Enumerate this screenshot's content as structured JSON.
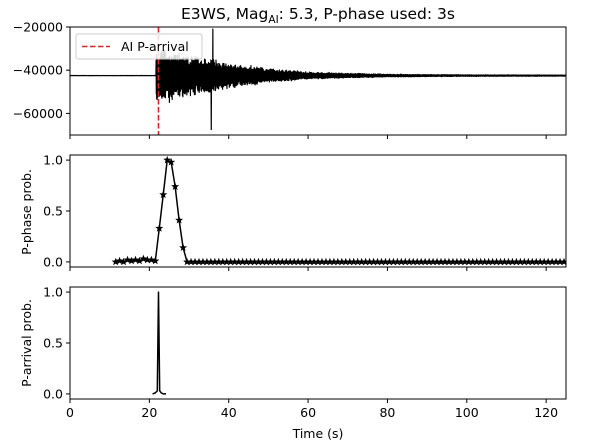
{
  "chart_data": [
    {
      "type": "line",
      "panel": "waveform",
      "title_main": "E3WS, Mag",
      "title_sub": "AI",
      "title_rest": ": 5.3, P-phase used: 3s",
      "xlabel": "",
      "ylabel": "",
      "xlim": [
        0,
        125
      ],
      "ylim": [
        -70000,
        -20000
      ],
      "yticks": [
        -60000,
        -40000,
        -20000
      ],
      "ytick_labels": [
        "−60000",
        "−40000",
        "−20000"
      ],
      "xticks": [
        0,
        20,
        40,
        60,
        80,
        100,
        120
      ],
      "baseline": -42500,
      "arrival_time": 22.3,
      "signal_start": 21.7,
      "envelope": [
        {
          "t": 22,
          "a": 14000
        },
        {
          "t": 25,
          "a": 12500
        },
        {
          "t": 30,
          "a": 10000
        },
        {
          "t": 36,
          "a": 8500
        },
        {
          "t": 40,
          "a": 6500
        },
        {
          "t": 50,
          "a": 3500
        },
        {
          "t": 60,
          "a": 1800
        },
        {
          "t": 80,
          "a": 700
        },
        {
          "t": 100,
          "a": 400
        },
        {
          "t": 125,
          "a": 300
        }
      ],
      "peaks": [
        {
          "t": 36,
          "y": -21000
        },
        {
          "t": 35.6,
          "y": -67500
        }
      ],
      "legend": {
        "label": "AI P-arrival",
        "placement": "upper-left"
      },
      "grid": false
    },
    {
      "type": "line",
      "panel": "p-phase",
      "ylabel": "P-phase prob.",
      "xlim": [
        0,
        125
      ],
      "ylim": [
        -0.05,
        1.05
      ],
      "yticks": [
        0.0,
        0.5,
        1.0
      ],
      "ytick_labels": [
        "0.0",
        "0.5",
        "1.0"
      ],
      "xticks": [
        0,
        20,
        40,
        60,
        80,
        100,
        120
      ],
      "marker": "star",
      "points": [
        [
          11.5,
          0.0
        ],
        [
          12.5,
          0.01
        ],
        [
          13.5,
          0.0
        ],
        [
          14.5,
          0.02
        ],
        [
          15.5,
          0.01
        ],
        [
          16.5,
          0.02
        ],
        [
          17.5,
          0.01
        ],
        [
          18.5,
          0.03
        ],
        [
          19.5,
          0.02
        ],
        [
          20.5,
          0.02
        ],
        [
          21.5,
          0.01
        ],
        [
          22.5,
          0.33
        ],
        [
          23.5,
          0.66
        ],
        [
          24.5,
          1.0
        ],
        [
          25.5,
          0.98
        ],
        [
          26.5,
          0.74
        ],
        [
          27.5,
          0.41
        ],
        [
          28.5,
          0.14
        ],
        [
          29.5,
          0.0
        ],
        [
          30.5,
          0.0
        ],
        [
          31.5,
          0.0
        ],
        [
          32.5,
          0.0
        ],
        [
          33.5,
          0.0
        ],
        [
          34.5,
          0.0
        ],
        [
          35.5,
          0.0
        ],
        [
          36.5,
          0.0
        ],
        [
          37.5,
          0.0
        ],
        [
          38.5,
          0.0
        ],
        [
          39.5,
          0.0
        ],
        [
          40.5,
          0.0
        ],
        [
          41.5,
          0.0
        ],
        [
          42.5,
          0.0
        ],
        [
          43.5,
          0.0
        ],
        [
          44.5,
          0.0
        ],
        [
          45.5,
          0.0
        ],
        [
          46.5,
          0.0
        ],
        [
          47.5,
          0.0
        ],
        [
          48.5,
          0.0
        ],
        [
          49.5,
          0.0
        ],
        [
          50.5,
          0.0
        ],
        [
          51.5,
          0.0
        ],
        [
          52.5,
          0.0
        ],
        [
          53.5,
          0.0
        ],
        [
          54.5,
          0.0
        ],
        [
          55.5,
          0.0
        ],
        [
          56.5,
          0.0
        ],
        [
          57.5,
          0.0
        ],
        [
          58.5,
          0.0
        ],
        [
          59.5,
          0.0
        ],
        [
          60.5,
          0.0
        ],
        [
          61.5,
          0.0
        ],
        [
          62.5,
          0.0
        ],
        [
          63.5,
          0.0
        ],
        [
          64.5,
          0.0
        ],
        [
          65.5,
          0.0
        ],
        [
          66.5,
          0.0
        ],
        [
          67.5,
          0.0
        ],
        [
          68.5,
          0.0
        ],
        [
          69.5,
          0.0
        ],
        [
          70.5,
          0.0
        ],
        [
          71.5,
          0.0
        ],
        [
          72.5,
          0.0
        ],
        [
          73.5,
          0.0
        ],
        [
          74.5,
          0.0
        ],
        [
          75.5,
          0.0
        ],
        [
          76.5,
          0.0
        ],
        [
          77.5,
          0.0
        ],
        [
          78.5,
          0.0
        ],
        [
          79.5,
          0.0
        ],
        [
          80.5,
          0.0
        ],
        [
          81.5,
          0.0
        ],
        [
          82.5,
          0.0
        ],
        [
          83.5,
          0.0
        ],
        [
          84.5,
          0.0
        ],
        [
          85.5,
          0.0
        ],
        [
          86.5,
          0.0
        ],
        [
          87.5,
          0.0
        ],
        [
          88.5,
          0.0
        ],
        [
          89.5,
          0.0
        ],
        [
          90.5,
          0.0
        ],
        [
          91.5,
          0.0
        ],
        [
          92.5,
          0.0
        ],
        [
          93.5,
          0.0
        ],
        [
          94.5,
          0.0
        ],
        [
          95.5,
          0.0
        ],
        [
          96.5,
          0.0
        ],
        [
          97.5,
          0.0
        ],
        [
          98.5,
          0.0
        ],
        [
          99.5,
          0.0
        ],
        [
          100.5,
          0.0
        ],
        [
          101.5,
          0.0
        ],
        [
          102.5,
          0.0
        ],
        [
          103.5,
          0.0
        ],
        [
          104.5,
          0.0
        ],
        [
          105.5,
          0.0
        ],
        [
          106.5,
          0.0
        ],
        [
          107.5,
          0.0
        ],
        [
          108.5,
          0.0
        ],
        [
          109.5,
          0.0
        ],
        [
          110.5,
          0.0
        ],
        [
          111.5,
          0.0
        ],
        [
          112.5,
          0.0
        ],
        [
          113.5,
          0.0
        ],
        [
          114.5,
          0.0
        ],
        [
          115.5,
          0.0
        ],
        [
          116.5,
          0.0
        ],
        [
          117.5,
          0.0
        ],
        [
          118.5,
          0.0
        ],
        [
          119.5,
          0.0
        ],
        [
          120.5,
          0.0
        ],
        [
          121.5,
          0.0
        ],
        [
          122.5,
          0.0
        ],
        [
          123.5,
          0.0
        ],
        [
          124.5,
          0.0
        ]
      ],
      "grid": false
    },
    {
      "type": "line",
      "panel": "p-arrival",
      "ylabel": "P-arrival prob.",
      "xlabel": "Time (s)",
      "xlim": [
        0,
        125
      ],
      "ylim": [
        -0.05,
        1.05
      ],
      "yticks": [
        0.0,
        0.5,
        1.0
      ],
      "ytick_labels": [
        "0.0",
        "0.5",
        "1.0"
      ],
      "xticks": [
        0,
        20,
        40,
        60,
        80,
        100,
        120
      ],
      "xtick_labels": [
        "0",
        "20",
        "40",
        "60",
        "80",
        "100",
        "120"
      ],
      "points": [
        [
          20.8,
          0.0
        ],
        [
          21.5,
          0.01
        ],
        [
          22.0,
          0.03
        ],
        [
          22.3,
          1.0
        ],
        [
          22.6,
          0.03
        ],
        [
          23.0,
          0.01
        ],
        [
          23.5,
          0.0
        ],
        [
          24.2,
          0.0
        ]
      ],
      "grid": false
    }
  ],
  "colors": {
    "line": "#000000",
    "arrival": "#d62728",
    "axes": "#000000"
  }
}
